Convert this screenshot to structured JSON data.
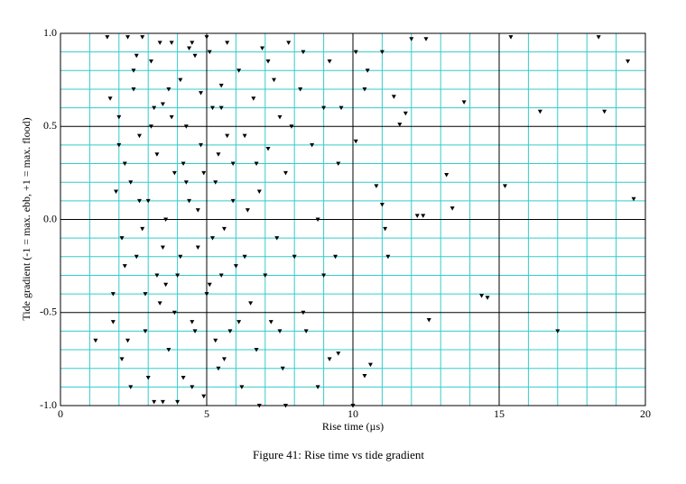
{
  "chart_data": {
    "type": "scatter",
    "caption": "Figure 41: Rise time vs tide gradient",
    "x_label": "Rise time (µs)",
    "y_label": "Tide gradient (-1 = max. ebb, +1 = max. flood)",
    "color": "#000000",
    "grid": true,
    "major_grid_color": "#000000",
    "minor_grid_color": "#33cccc",
    "xlim": [
      0,
      20
    ],
    "ylim": [
      -1,
      1
    ],
    "xticks": [
      0,
      5,
      10,
      15,
      20
    ],
    "yticks": [
      {
        "value": -1,
        "label": "-1.0"
      },
      -0.5,
      {
        "value": 0,
        "label": "0.0"
      },
      0.5,
      {
        "value": 1,
        "label": "1.0"
      }
    ],
    "xminor": [
      1,
      2,
      3,
      4,
      6,
      7,
      8,
      9,
      11,
      12,
      13,
      14,
      16,
      17,
      18,
      19
    ],
    "yminor": [
      -0.9,
      -0.8,
      -0.7,
      -0.6,
      -0.4,
      -0.3,
      -0.2,
      -0.1,
      0.1,
      0.2,
      0.3,
      0.4,
      0.6,
      0.7,
      0.8,
      0.9
    ],
    "x": [
      1.6,
      1.7,
      1.8,
      1.9,
      2.0,
      2.1,
      2.2,
      2.3,
      2.4,
      2.5,
      2.6,
      2.7,
      2.8,
      2.9,
      3.0,
      3.1,
      3.2,
      3.3,
      3.4,
      3.5,
      3.6,
      3.7,
      3.8,
      3.9,
      4.0,
      4.1,
      4.2,
      4.3,
      4.4,
      4.5,
      4.6,
      4.7,
      4.8,
      4.9,
      5.0,
      5.1,
      5.2,
      5.3,
      5.4,
      5.5,
      5.6,
      5.7,
      5.8,
      5.9,
      6.0,
      6.1,
      6.2,
      6.3,
      6.4,
      6.5,
      6.6,
      6.7,
      6.8,
      6.9,
      7.0,
      7.1,
      7.2,
      7.3,
      7.4,
      7.5,
      7.6,
      7.7,
      7.8,
      8.0,
      8.2,
      8.4,
      8.6,
      8.8,
      9.0,
      9.2,
      1.8,
      2.0,
      2.2,
      2.4,
      2.6,
      2.8,
      3.0,
      3.2,
      3.4,
      3.6,
      3.8,
      4.0,
      4.2,
      4.4,
      4.6,
      4.8,
      5.0,
      5.2,
      5.4,
      5.6,
      2.3,
      2.7,
      3.1,
      3.5,
      3.9,
      4.3,
      4.7,
      5.1,
      5.5,
      5.9,
      2.5,
      2.9,
      3.3,
      3.7,
      4.1,
      4.5,
      4.9,
      5.3,
      5.7,
      6.1,
      6.3,
      6.7,
      7.1,
      7.5,
      7.9,
      8.3,
      2.1,
      3.5,
      4.5,
      5.5,
      1.2,
      12.0,
      12.5,
      15.4,
      18.4,
      19.4,
      19.6,
      16.4,
      18.6,
      15.2,
      17.0,
      14.4,
      14.6,
      12.6,
      13.4,
      13.2,
      13.8,
      12.2,
      12.4,
      11.2,
      11.6,
      11.8,
      10.4,
      10.6,
      10.0,
      10.1,
      10.8,
      11.0,
      11.1,
      10.4,
      10.5,
      11.0,
      11.4,
      10.1,
      9.6,
      9.5,
      9.2,
      9.0,
      9.5,
      9.4,
      8.3,
      8.8,
      7.7,
      6.8
    ],
    "y": [
      0.98,
      0.65,
      -0.4,
      0.15,
      0.55,
      -0.75,
      0.3,
      0.98,
      -0.9,
      0.7,
      -0.2,
      0.45,
      0.98,
      -0.6,
      0.1,
      0.85,
      -0.98,
      0.35,
      -0.45,
      0.62,
      0.0,
      -0.7,
      0.95,
      0.25,
      -0.3,
      0.75,
      -0.85,
      0.5,
      0.1,
      -0.55,
      0.88,
      -0.15,
      0.4,
      -0.95,
      0.98,
      -0.35,
      0.6,
      0.2,
      -0.8,
      0.72,
      -0.05,
      0.95,
      -0.6,
      0.3,
      -0.25,
      0.8,
      -0.9,
      0.45,
      0.05,
      -0.45,
      0.65,
      -0.7,
      0.15,
      0.92,
      -0.3,
      0.38,
      -0.55,
      0.75,
      -0.1,
      0.55,
      -0.8,
      0.25,
      0.95,
      -0.2,
      0.7,
      -0.6,
      0.4,
      0.0,
      0.6,
      -0.75,
      -0.55,
      0.4,
      -0.25,
      0.2,
      0.88,
      -0.05,
      -0.85,
      0.6,
      0.95,
      -0.35,
      0.55,
      -0.98,
      0.3,
      0.92,
      -0.6,
      0.68,
      -0.4,
      -0.1,
      0.35,
      -0.75,
      -0.65,
      0.1,
      0.5,
      -0.15,
      -0.5,
      0.2,
      0.05,
      0.9,
      0.6,
      0.1,
      0.8,
      -0.4,
      -0.3,
      0.7,
      -0.2,
      -0.9,
      0.25,
      -0.65,
      0.45,
      -0.55,
      -0.2,
      0.3,
      0.85,
      -0.6,
      0.5,
      0.9,
      -0.1,
      -0.98,
      0.95,
      -0.3,
      -0.65,
      0.97,
      0.97,
      0.98,
      0.98,
      0.85,
      0.11,
      0.58,
      0.58,
      0.18,
      -0.6,
      -0.41,
      -0.42,
      -0.54,
      0.06,
      0.24,
      0.63,
      0.02,
      0.02,
      -0.2,
      0.51,
      0.57,
      -0.84,
      -0.78,
      -1.0,
      0.42,
      0.18,
      0.08,
      -0.05,
      0.7,
      0.8,
      0.9,
      0.66,
      0.9,
      0.6,
      0.3,
      0.85,
      -0.3,
      -0.72,
      -0.2,
      -0.5,
      -0.9,
      -1.0,
      -1.0
    ]
  }
}
